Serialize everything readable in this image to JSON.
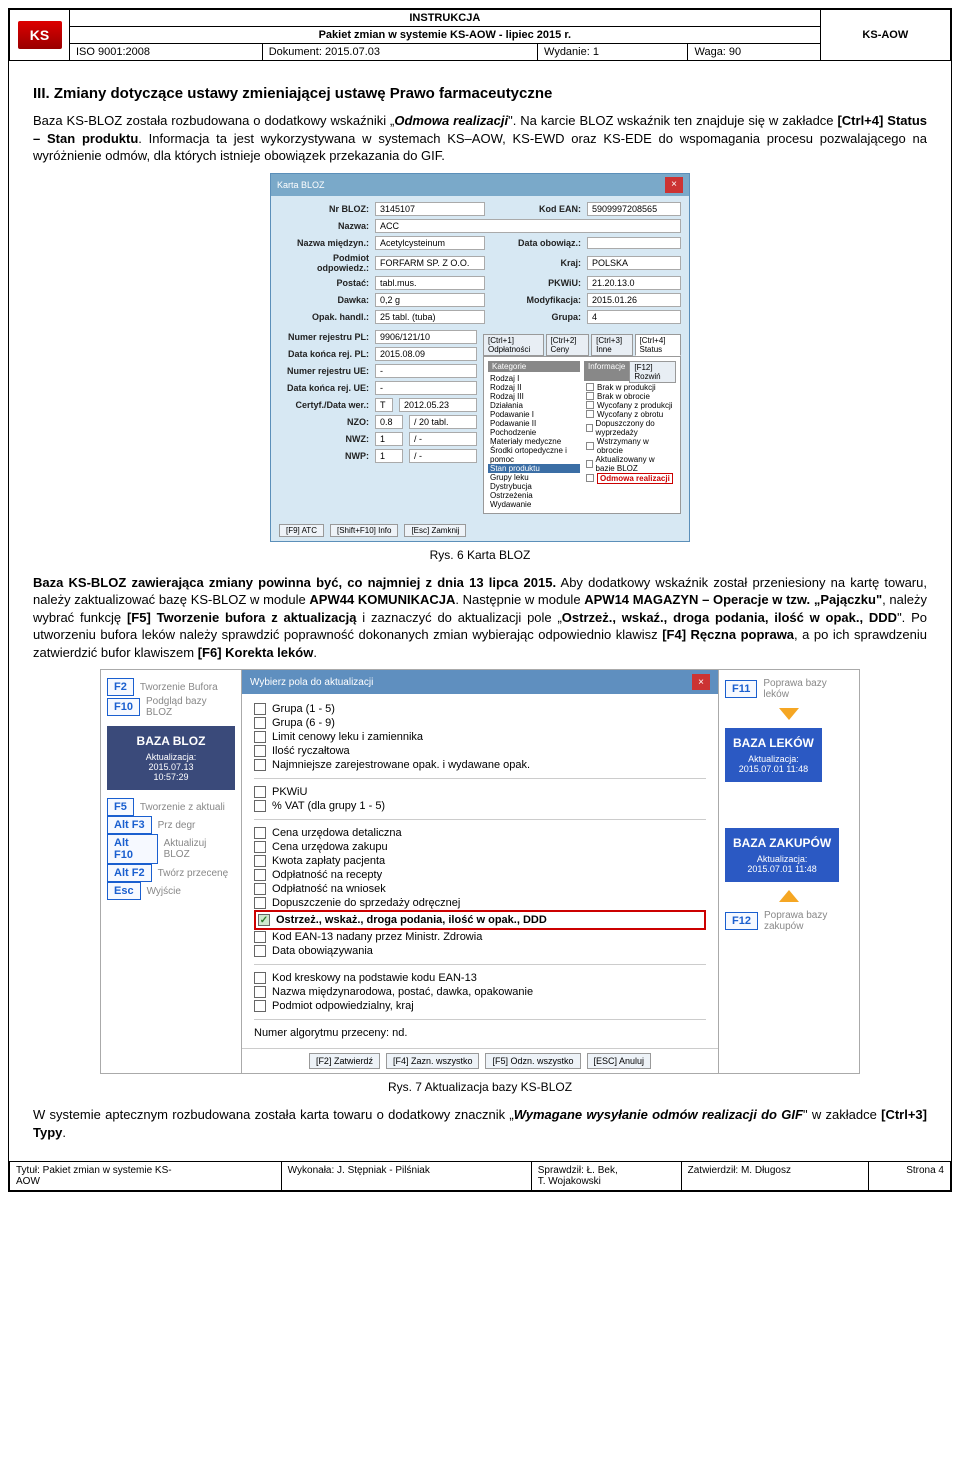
{
  "header": {
    "instrukcja": "INSTRUKCJA",
    "pakiet": "Pakiet zmian w systemie KS-AOW - lipiec 2015 r.",
    "iso": "ISO 9001:2008",
    "dokument": "Dokument: 2015.07.03",
    "wydanie": "Wydanie: 1",
    "waga": "Waga: 90",
    "brand": "KS-AOW",
    "logo": "KS"
  },
  "section_title": "III.   Zmiany dotyczące ustawy zmieniającej ustawę Prawo farmaceutyczne",
  "para1_a": "Baza KS-BLOZ została rozbudowana o dodatkowy wskaźniki „",
  "para1_b": "Odmowa realizacji",
  "para1_c": "\". Na karcie BLOZ wskaźnik ten znajduje się w zakładce ",
  "para1_d": "[Ctrl+4] Status – Stan produktu",
  "para1_e": ". Informacja ta jest wykorzystywana w systemach KS–AOW, KS-EWD oraz KS-EDE do wspomagania procesu pozwalającego na wyróżnienie odmów, dla których istnieje obowiązek przekazania do GIF.",
  "fig6": "Rys. 6 Karta BLOZ",
  "para2_a": "Baza KS-BLOZ zawierająca zmiany powinna być, co najmniej z dnia 13 lipca 2015.",
  "para2_b": " Aby dodatkowy wskaźnik został przeniesiony na kartę towaru, należy zaktualizować bazę KS-BLOZ w module ",
  "para2_c": "APW44 KOMUNIKACJA",
  "para2_d": ". Następnie w module ",
  "para2_e": "APW14 MAGAZYN – Operacje w tzw. „Pajączku\"",
  "para2_f": ", należy wybrać funkcję ",
  "para2_g": "[F5] Tworzenie bufora z aktualizacją",
  "para2_h": " i zaznaczyć do aktualizacji pole „",
  "para2_i": "Ostrzeż., wskaź., droga podania, ilość w opak., DDD",
  "para2_j": "\". Po utworzeniu bufora leków należy sprawdzić poprawność dokonanych zmian wybierając odpowiednio klawisz ",
  "para2_k": "[F4] Ręczna poprawa",
  "para2_l": ", a po ich sprawdzeniu zatwierdzić bufor klawiszem ",
  "para2_m": "[F6] Korekta leków",
  "para2_n": ".",
  "fig7": "Rys. 7 Aktualizacja bazy KS-BLOZ",
  "para3_a": "W systemie aptecznym rozbudowana została karta towaru o dodatkowy znacznik „",
  "para3_b": "Wymagane wysyłanie odmów realizacji do GIF",
  "para3_c": "\" w zakładce ",
  "para3_d": "[Ctrl+3] Typy",
  "para3_e": ".",
  "shot1": {
    "title": "Karta BLOZ",
    "nrbloz_lbl": "Nr BLOZ:",
    "nrbloz": "3145107",
    "kodean_lbl": "Kod EAN:",
    "kodean": "5909997208565",
    "nazwa_lbl": "Nazwa:",
    "nazwa": "ACC",
    "nm_lbl": "Nazwa międzyn.:",
    "nm": "Acetylcysteinum",
    "do_lbl": "Data obowiąz.:",
    "po_lbl": "Podmiot odpowiedz.:",
    "po": "FORFARM SP. Z O.O.",
    "kraj_lbl": "Kraj:",
    "kraj": "POLSKA",
    "postac_lbl": "Postać:",
    "postac": "tabl.mus.",
    "pkwiu_lbl": "PKWiU:",
    "pkwiu": "21.20.13.0",
    "dawka_lbl": "Dawka:",
    "dawka": "0,2 g",
    "mod_lbl": "Modyfikacja:",
    "mod": "2015.01.26",
    "opak_lbl": "Opak. handl.:",
    "opak": "25 tabl. (tuba)",
    "grupa_lbl": "Grupa:",
    "grupa": "4",
    "nrrej_lbl": "Numer rejestru PL:",
    "nrrej": "9906/121/10",
    "dkr_lbl": "Data końca rej. PL:",
    "dkr": "2015.08.09",
    "nrue_lbl": "Numer rejestru UE:",
    "nrue": "-",
    "dkue_lbl": "Data końca rej. UE:",
    "dkue": "-",
    "cert_lbl": "Certyf./Data wer.:",
    "cert_t": "T",
    "cert_d": "2012.05.23",
    "nzo_lbl": "NZO:",
    "nzo_a": "0.8",
    "nzo_b": "/ 20 tabl.",
    "nwz_lbl": "NWZ:",
    "nw_a": "1",
    "nw_b": "/ -",
    "nwp_lbl": "NWP:",
    "tab1": "[Ctrl+1] Odpłatności",
    "tab2": "[Ctrl+2] Ceny",
    "tab3": "[Ctrl+3] Inne",
    "tab4": "[Ctrl+4] Status",
    "kat_hdr": "Kategorie",
    "inf_hdr": "Informacje",
    "roz": "[F12] Rozwiń",
    "kat": [
      "Rodzaj I",
      "Rodzaj II",
      "Rodzaj III",
      "Działania",
      "Podawanie I",
      "Podawanie II",
      "Pochodzenie",
      "Materiały medyczne",
      "Środki ortopedyczne i pomoc",
      "Stan produktu",
      "Grupy leku",
      "Dystrybucja",
      "Ostrzeżenia",
      "Wydawanie"
    ],
    "inf": [
      "Brak w produkcji",
      "Brak w obrocie",
      "Wycofany z produkcji",
      "Wycofany z obrotu",
      "Dopuszczony do wyprzedaży",
      "Wstrzymany w obrocie",
      "Aktualizowany w bazie BLOZ"
    ],
    "inf_hl": "Odmowa realizacji",
    "btn1": "[F9] ATC",
    "btn2": "[Shift+F10] Info",
    "btn3": "[Esc] Zamknij"
  },
  "shot2": {
    "dlg_title": "Wybierz pola do aktualizacji",
    "left": [
      {
        "k": "F2",
        "t": "Tworzenie Bufora"
      },
      {
        "k": "F10",
        "t": "Podgląd bazy BLOZ"
      }
    ],
    "left_box_title": "BAZA BLOZ",
    "left_box_sub": "Aktualizacja:\n2015.07.13\n10:57:29",
    "left2": [
      {
        "k": "F5",
        "t": "Tworzenie z aktuali"
      },
      {
        "k": "Alt F3",
        "t": "Prz degr"
      },
      {
        "k": "Alt F10",
        "t": "Aktualizuj BLOZ"
      },
      {
        "k": "Alt F2",
        "t": "Twórz przecenę"
      },
      {
        "k": "Esc",
        "t": "Wyjście"
      }
    ],
    "right_top": {
      "k": "F11",
      "t": "Poprawa bazy leków"
    },
    "right_box1_title": "BAZA LEKÓW",
    "right_box1_sub": "Aktualizacja:\n2015.07.01 11:48",
    "right_box2_title": "BAZA ZAKUPÓW",
    "right_box2_sub": "Aktualizacja:\n2015.07.01 11:48",
    "right_bottom": {
      "k": "F12",
      "t": "Poprawa bazy zakupów"
    },
    "g1": [
      "Grupa (1 - 5)",
      "Grupa (6 - 9)",
      "Limit cenowy leku i zamiennika",
      "Ilość ryczałtowa",
      "Najmniejsze zarejestrowane opak. i wydawane opak."
    ],
    "g2": [
      "PKWiU",
      "% VAT (dla grupy 1 - 5)"
    ],
    "g3": [
      "Cena urzędowa detaliczna",
      "Cena urzędowa zakupu",
      "Kwota zapłaty pacjenta",
      "Odpłatność na recepty",
      "Odpłatność na wniosek",
      "Dopuszczenie do sprzedaży odręcznej"
    ],
    "g3_hl": "Ostrzeż., wskaż., droga podania, ilość w opak., DDD",
    "g3b": [
      "Kod EAN-13 nadany przez Ministr. Zdrowia",
      "Data obowiązywania"
    ],
    "g4": [
      "Kod kreskowy na podstawie kodu EAN-13",
      "Nazwa międzynarodowa, postać, dawka, opakowanie",
      "Podmiot odpowiedzialny, kraj"
    ],
    "g5_lbl": "Numer algorytmu przeceny: nd.",
    "btns": [
      "[F2] Zatwierdź",
      "[F4] Zazn. wszystko",
      "[F5] Odzn. wszystko",
      "[ESC] Anuluj"
    ]
  },
  "footer": {
    "c1a": "Tytuł: Pakiet zmian w systemie KS-",
    "c1b": "AOW",
    "c2": "Wykonała: J. Stępniak - Pilśniak",
    "c3a": "Sprawdził: Ł. Bek,",
    "c3b": "T. Wojakowski",
    "c4": "Zatwierdził: M. Długosz",
    "c5": "Strona 4"
  }
}
